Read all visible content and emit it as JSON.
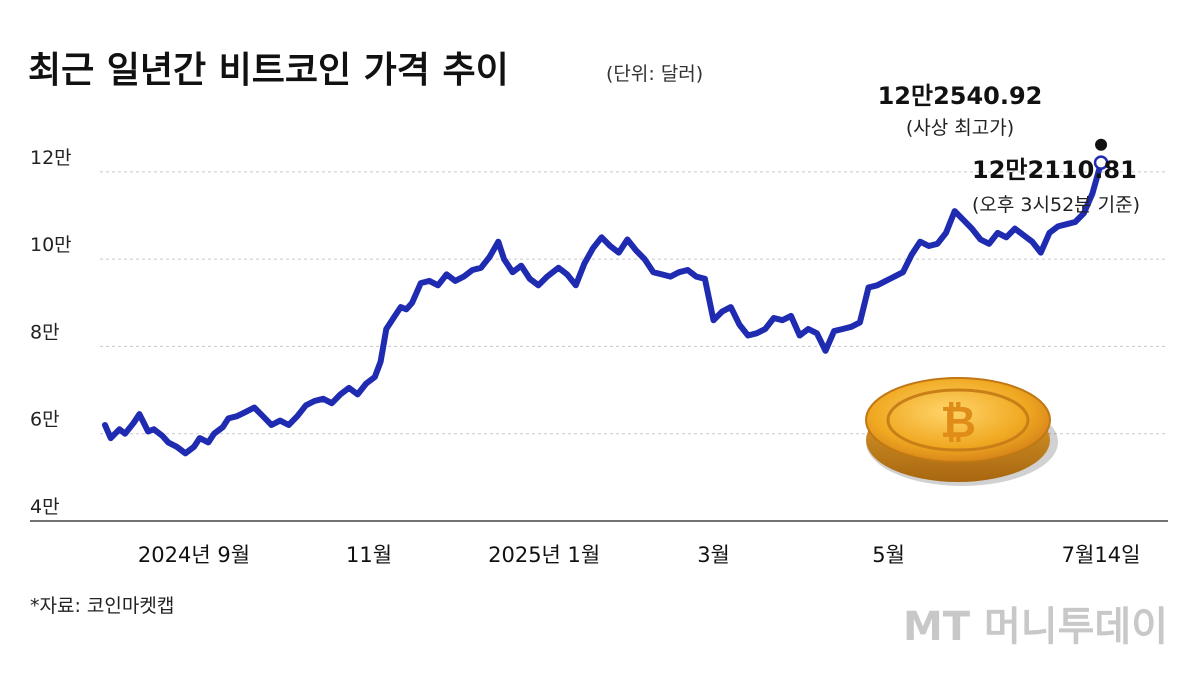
{
  "chart_data": {
    "type": "line",
    "title": "최근 일년간 비트코인 가격 추이",
    "unit_note": "(단위: 달러)",
    "source": "*자료: 코인마켓캡",
    "watermark": "MT 머니투데이",
    "y_tick_labels": [
      "12만",
      "10만",
      "8만",
      "6만",
      "4만"
    ],
    "y_tick_values": [
      120000,
      100000,
      80000,
      60000,
      40000
    ],
    "ylim": [
      40000,
      125000
    ],
    "grid": true,
    "x_tick_labels": [
      "2024년 9월",
      "11월",
      "2025년 1월",
      "3월",
      "5월",
      "7월14일"
    ],
    "x_tick_dates": [
      "2024-09-01",
      "2024-11-01",
      "2025-01-01",
      "2025-03-01",
      "2025-05-01",
      "2025-07-14"
    ],
    "xlim": [
      "2024-08-01",
      "2025-08-22"
    ],
    "line_color": "#1f2bb0",
    "series": [
      {
        "x": [
          "2024-08-01",
          "2024-08-03",
          "2024-08-06",
          "2024-08-08",
          "2024-08-11",
          "2024-08-13",
          "2024-08-16",
          "2024-08-18",
          "2024-08-21",
          "2024-08-23",
          "2024-08-26",
          "2024-08-29",
          "2024-09-01",
          "2024-09-03",
          "2024-09-06",
          "2024-09-08",
          "2024-09-11",
          "2024-09-13",
          "2024-09-16",
          "2024-09-19",
          "2024-09-22",
          "2024-09-25",
          "2024-09-28",
          "2024-10-01",
          "2024-10-04",
          "2024-10-07",
          "2024-10-10",
          "2024-10-13",
          "2024-10-16",
          "2024-10-19",
          "2024-10-22",
          "2024-10-25",
          "2024-10-28",
          "2024-10-31",
          "2024-11-03",
          "2024-11-05",
          "2024-11-07",
          "2024-11-10",
          "2024-11-12",
          "2024-11-14",
          "2024-11-16",
          "2024-11-19",
          "2024-11-22",
          "2024-11-25",
          "2024-11-28",
          "2024-12-01",
          "2024-12-04",
          "2024-12-07",
          "2024-12-10",
          "2024-12-13",
          "2024-12-16",
          "2024-12-18",
          "2024-12-21",
          "2024-12-24",
          "2024-12-27",
          "2024-12-30",
          "2025-01-02",
          "2025-01-06",
          "2025-01-09",
          "2025-01-12",
          "2025-01-15",
          "2025-01-18",
          "2025-01-21",
          "2025-01-24",
          "2025-01-27",
          "2025-01-30",
          "2025-02-02",
          "2025-02-05",
          "2025-02-08",
          "2025-02-11",
          "2025-02-14",
          "2025-02-17",
          "2025-02-20",
          "2025-02-23",
          "2025-02-26",
          "2025-03-01",
          "2025-03-04",
          "2025-03-07",
          "2025-03-10",
          "2025-03-13",
          "2025-03-16",
          "2025-03-19",
          "2025-03-22",
          "2025-03-25",
          "2025-03-28",
          "2025-03-31",
          "2025-04-03",
          "2025-04-06",
          "2025-04-09",
          "2025-04-12",
          "2025-04-15",
          "2025-04-18",
          "2025-04-21",
          "2025-04-24",
          "2025-04-27",
          "2025-04-30",
          "2025-05-03",
          "2025-05-06",
          "2025-05-09",
          "2025-05-12",
          "2025-05-15",
          "2025-05-18",
          "2025-05-21",
          "2025-05-24",
          "2025-05-27",
          "2025-05-30",
          "2025-06-02",
          "2025-06-05",
          "2025-06-08",
          "2025-06-11",
          "2025-06-14",
          "2025-06-17",
          "2025-06-20",
          "2025-06-23",
          "2025-06-26",
          "2025-06-29",
          "2025-07-02",
          "2025-07-05",
          "2025-07-08",
          "2025-07-11",
          "2025-07-14"
        ],
        "y": [
          62000,
          59000,
          61000,
          60000,
          62500,
          64500,
          60500,
          61000,
          59500,
          58000,
          57000,
          55500,
          57000,
          59000,
          58000,
          60000,
          61500,
          63500,
          64000,
          65000,
          66000,
          64000,
          62000,
          63000,
          62000,
          64000,
          66500,
          67500,
          68000,
          67000,
          69000,
          70500,
          69000,
          71500,
          73000,
          76500,
          84000,
          87000,
          89000,
          88500,
          90000,
          94500,
          95000,
          94000,
          96500,
          95000,
          96000,
          97500,
          98000,
          100500,
          104000,
          100000,
          97000,
          98500,
          95500,
          94000,
          96000,
          98000,
          96500,
          94000,
          99000,
          102500,
          105000,
          103000,
          101500,
          104500,
          102000,
          100000,
          97000,
          96500,
          96000,
          97000,
          97500,
          96000,
          95500,
          86000,
          88000,
          89000,
          85000,
          82500,
          83000,
          84000,
          86500,
          86000,
          87000,
          82500,
          84000,
          83000,
          79000,
          83500,
          84000,
          84500,
          85500,
          93500,
          94000,
          95000,
          96000,
          97000,
          101000,
          104000,
          103000,
          103500,
          106000,
          111000,
          109000,
          107000,
          104500,
          103500,
          106000,
          105000,
          107000,
          105500,
          104000,
          101500,
          106000,
          107500,
          108000,
          108500,
          110500,
          115000,
          122110.81
        ]
      }
    ],
    "annotations": {
      "ath_value": "12만2540.92",
      "ath_label": "(사상 최고가)",
      "current_value": "12만2110.81",
      "current_label": "(오후 3시52분 기준)",
      "ath_date": "2025-07-14",
      "ath_y": 122540.92,
      "current_date": "2025-07-14",
      "current_y": 122110.81
    }
  }
}
